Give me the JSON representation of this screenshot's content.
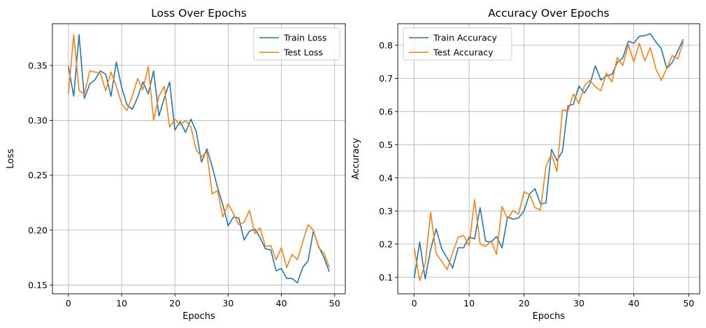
{
  "colors": {
    "train": "#1f77b4",
    "test": "#ff7f0e",
    "grid": "#b0b0b0"
  },
  "chart_data": [
    {
      "type": "line",
      "title": "Loss Over Epochs",
      "xlabel": "Epochs",
      "ylabel": "Loss",
      "xlim": [
        -3,
        52
      ],
      "ylim": [
        0.142,
        0.388
      ],
      "xticks": [
        0,
        10,
        20,
        30,
        40,
        50
      ],
      "yticks": [
        0.15,
        0.2,
        0.25,
        0.3,
        0.35
      ],
      "ytick_labels": [
        "0.15",
        "0.20",
        "0.25",
        "0.30",
        "0.35"
      ],
      "grid": true,
      "legend_position": "top-right",
      "x": [
        0,
        1,
        2,
        3,
        4,
        5,
        6,
        7,
        8,
        9,
        10,
        11,
        12,
        13,
        14,
        15,
        16,
        17,
        18,
        19,
        20,
        21,
        22,
        23,
        24,
        25,
        26,
        27,
        28,
        29,
        30,
        31,
        32,
        33,
        34,
        35,
        36,
        37,
        38,
        39,
        40,
        41,
        42,
        43,
        44,
        45,
        46,
        47,
        48,
        49
      ],
      "series": [
        {
          "name": "Train Loss",
          "color": "#1f77b4",
          "values": [
            0.349,
            0.322,
            0.378,
            0.32,
            0.333,
            0.337,
            0.345,
            0.342,
            0.322,
            0.353,
            0.33,
            0.314,
            0.31,
            0.321,
            0.335,
            0.324,
            0.345,
            0.304,
            0.32,
            0.335,
            0.291,
            0.299,
            0.289,
            0.301,
            0.29,
            0.262,
            0.274,
            0.258,
            0.239,
            0.223,
            0.204,
            0.212,
            0.211,
            0.191,
            0.199,
            0.201,
            0.193,
            0.183,
            0.182,
            0.163,
            0.165,
            0.156,
            0.156,
            0.152,
            0.166,
            0.172,
            0.199,
            0.185,
            0.175,
            0.162
          ]
        },
        {
          "name": "Test Loss",
          "color": "#ff7f0e",
          "values": [
            0.324,
            0.378,
            0.327,
            0.324,
            0.345,
            0.344,
            0.343,
            0.327,
            0.344,
            0.331,
            0.315,
            0.309,
            0.322,
            0.338,
            0.328,
            0.349,
            0.3,
            0.322,
            0.331,
            0.294,
            0.301,
            0.296,
            0.3,
            0.294,
            0.273,
            0.267,
            0.271,
            0.233,
            0.236,
            0.212,
            0.224,
            0.215,
            0.205,
            0.207,
            0.218,
            0.197,
            0.202,
            0.185,
            0.186,
            0.173,
            0.184,
            0.166,
            0.178,
            0.173,
            0.189,
            0.205,
            0.2,
            0.184,
            0.179,
            0.166
          ]
        }
      ]
    },
    {
      "type": "line",
      "title": "Accuracy Over Epochs",
      "xlabel": "Epochs",
      "ylabel": "Accuracy",
      "xlim": [
        -3,
        52
      ],
      "ylim": [
        0.05,
        0.865
      ],
      "xticks": [
        0,
        10,
        20,
        30,
        40,
        50
      ],
      "yticks": [
        0.1,
        0.2,
        0.3,
        0.4,
        0.5,
        0.6,
        0.7,
        0.8
      ],
      "ytick_labels": [
        "0.1",
        "0.2",
        "0.3",
        "0.4",
        "0.5",
        "0.6",
        "0.7",
        "0.8"
      ],
      "grid": true,
      "legend_position": "top-left",
      "x": [
        0,
        1,
        2,
        3,
        4,
        5,
        6,
        7,
        8,
        9,
        10,
        11,
        12,
        13,
        14,
        15,
        16,
        17,
        18,
        19,
        20,
        21,
        22,
        23,
        24,
        25,
        26,
        27,
        28,
        29,
        30,
        31,
        32,
        33,
        34,
        35,
        36,
        37,
        38,
        39,
        40,
        41,
        42,
        43,
        44,
        45,
        46,
        47,
        48,
        49
      ],
      "series": [
        {
          "name": "Train Accuracy",
          "color": "#1f77b4",
          "values": [
            0.097,
            0.206,
            0.095,
            0.185,
            0.246,
            0.186,
            0.158,
            0.128,
            0.189,
            0.189,
            0.221,
            0.216,
            0.31,
            0.209,
            0.206,
            0.223,
            0.189,
            0.282,
            0.275,
            0.279,
            0.3,
            0.351,
            0.367,
            0.321,
            0.324,
            0.486,
            0.452,
            0.48,
            0.617,
            0.622,
            0.677,
            0.656,
            0.683,
            0.738,
            0.695,
            0.707,
            0.712,
            0.748,
            0.762,
            0.812,
            0.806,
            0.827,
            0.829,
            0.835,
            0.81,
            0.79,
            0.73,
            0.748,
            0.782,
            0.818
          ]
        },
        {
          "name": "Test Accuracy",
          "color": "#ff7f0e",
          "values": [
            0.189,
            0.09,
            0.14,
            0.296,
            0.172,
            0.148,
            0.123,
            0.174,
            0.22,
            0.226,
            0.195,
            0.334,
            0.201,
            0.193,
            0.21,
            0.169,
            0.314,
            0.276,
            0.301,
            0.29,
            0.358,
            0.35,
            0.31,
            0.303,
            0.436,
            0.471,
            0.419,
            0.605,
            0.602,
            0.653,
            0.624,
            0.678,
            0.694,
            0.675,
            0.663,
            0.716,
            0.689,
            0.763,
            0.739,
            0.802,
            0.75,
            0.806,
            0.753,
            0.793,
            0.73,
            0.694,
            0.73,
            0.769,
            0.759,
            0.81
          ]
        }
      ]
    }
  ]
}
